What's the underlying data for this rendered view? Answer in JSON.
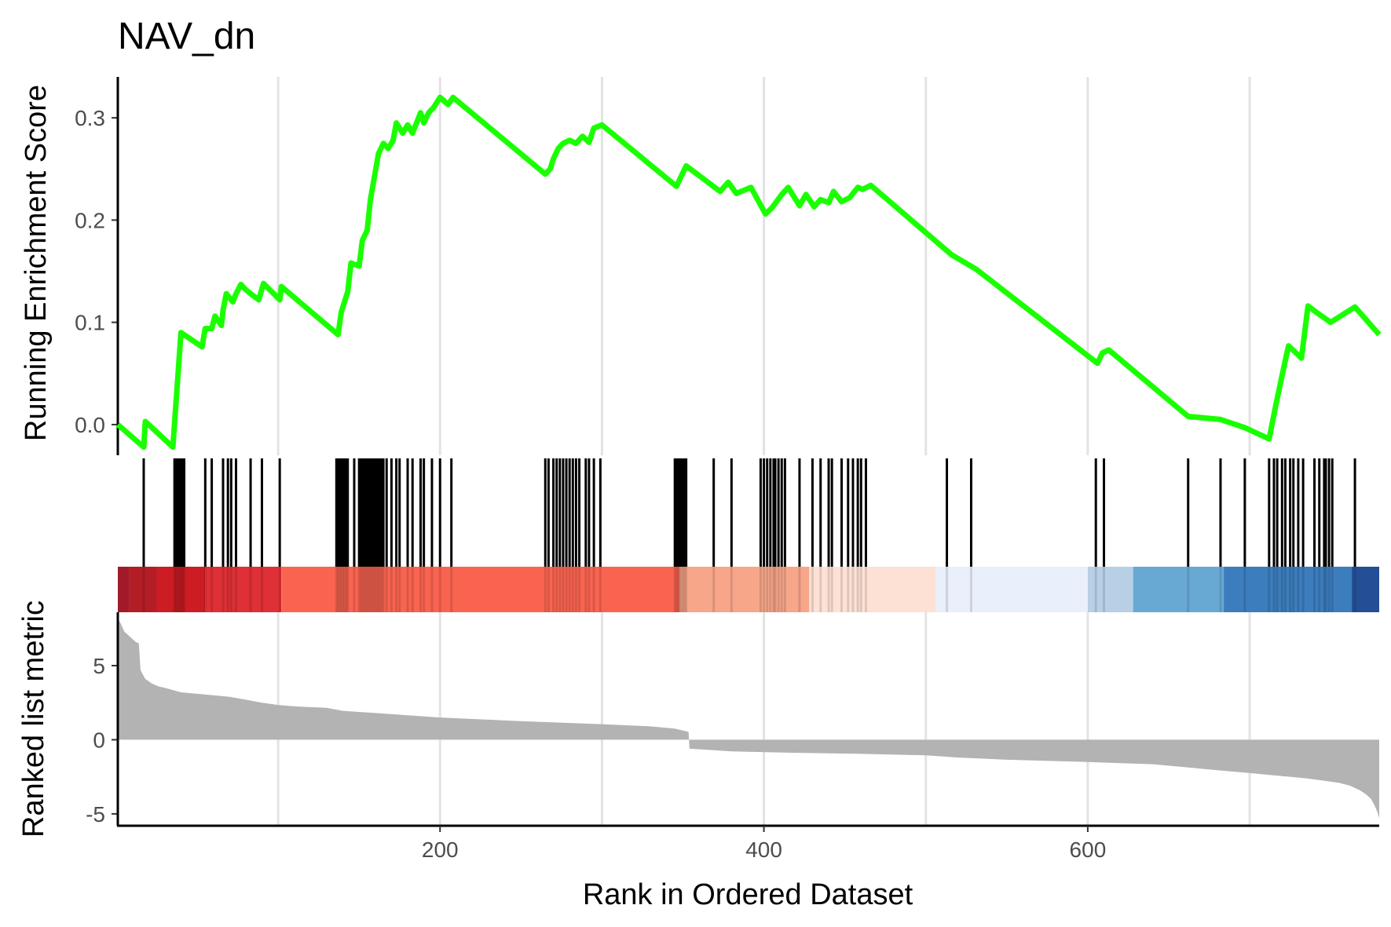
{
  "chart_data": {
    "type": "line",
    "title": "NAV_dn",
    "xlabel": "Rank in Ordered Dataset",
    "xlim": [
      1,
      780
    ],
    "x_ticks": [
      200,
      400,
      600
    ],
    "grid": "vertical major gridlines",
    "panels": [
      {
        "name": "running-enrichment",
        "ylabel": "Running Enrichment Score",
        "ylim": [
          -0.03,
          0.34
        ],
        "y_ticks": [
          0.0,
          0.1,
          0.2,
          0.3
        ],
        "y_tick_labels": [
          "0.0",
          "0.1",
          "0.2",
          "0.3"
        ],
        "line_color": "#1aff00",
        "series": [
          {
            "x": [
              1,
              17,
              18,
              35,
              40,
              53,
              55,
              59,
              61,
              65,
              66,
              68,
              72,
              74,
              77,
              80,
              83,
              88,
              91,
              101,
              102,
              137,
              139,
              143,
              145,
              150,
              152,
              155,
              157,
              162,
              165,
              168,
              171,
              173,
              177,
              180,
              183,
              188,
              190,
              193,
              196,
              200,
              205,
              208,
              265,
              268,
              270,
              273,
              276,
              280,
              284,
              288,
              292,
              295,
              300,
              346,
              352,
              373,
              378,
              383,
              392,
              401,
              405,
              411,
              415,
              422,
              426,
              431,
              435,
              440,
              443,
              448,
              453,
              458,
              461,
              466,
              516,
              531,
              606,
              609,
              613,
              662,
              682,
              697,
              712,
              716,
              720,
              724,
              732,
              736,
              741,
              750,
              765,
              780
            ],
            "y": [
              0.0,
              -0.022,
              0.003,
              -0.022,
              0.09,
              0.076,
              0.094,
              0.094,
              0.106,
              0.097,
              0.112,
              0.128,
              0.12,
              0.128,
              0.137,
              0.132,
              0.128,
              0.122,
              0.138,
              0.122,
              0.135,
              0.088,
              0.11,
              0.13,
              0.158,
              0.155,
              0.18,
              0.19,
              0.22,
              0.265,
              0.275,
              0.27,
              0.278,
              0.295,
              0.285,
              0.293,
              0.285,
              0.305,
              0.295,
              0.305,
              0.31,
              0.32,
              0.313,
              0.32,
              0.245,
              0.25,
              0.26,
              0.27,
              0.275,
              0.278,
              0.275,
              0.282,
              0.276,
              0.29,
              0.293,
              0.233,
              0.253,
              0.228,
              0.237,
              0.226,
              0.232,
              0.206,
              0.212,
              0.225,
              0.232,
              0.214,
              0.225,
              0.213,
              0.22,
              0.217,
              0.228,
              0.218,
              0.222,
              0.232,
              0.23,
              0.234,
              0.166,
              0.152,
              0.06,
              0.07,
              0.073,
              0.008,
              0.005,
              -0.003,
              -0.014,
              0.018,
              0.048,
              0.077,
              0.065,
              0.116,
              0.11,
              0.1,
              0.115,
              0.088
            ]
          }
        ]
      },
      {
        "name": "hit-positions",
        "type": "rug",
        "hits": [
          17,
          36,
          37,
          38,
          39,
          40,
          41,
          42,
          55,
          59,
          66,
          69,
          71,
          74,
          83,
          90,
          101,
          136,
          137,
          138,
          139,
          140,
          141,
          142,
          143,
          147,
          150,
          151,
          152,
          153,
          154,
          155,
          156,
          157,
          158,
          159,
          160,
          161,
          162,
          163,
          164,
          165,
          167,
          170,
          173,
          175,
          180,
          183,
          188,
          190,
          195,
          200,
          207,
          265,
          267,
          270,
          272,
          274,
          276,
          278,
          280,
          282,
          284,
          286,
          290,
          292,
          295,
          299,
          345,
          346,
          347,
          348,
          349,
          350,
          351,
          352,
          369,
          380,
          398,
          400,
          402,
          404,
          406,
          407,
          409,
          411,
          413,
          422,
          430,
          435,
          440,
          442,
          448,
          452,
          455,
          458,
          460,
          463,
          513,
          528,
          605,
          610,
          662,
          682,
          697,
          712,
          715,
          717,
          720,
          722,
          725,
          727,
          730,
          733,
          740,
          743,
          746,
          747,
          749,
          751,
          765
        ]
      },
      {
        "name": "ranked-metric-colorbar",
        "type": "color-band",
        "segments": [
          {
            "from": 1,
            "to": 8,
            "color": "#a01a2a"
          },
          {
            "from": 8,
            "to": 25,
            "color": "#b21d26"
          },
          {
            "from": 25,
            "to": 55,
            "color": "#cc1c24"
          },
          {
            "from": 55,
            "to": 102,
            "color": "#de3036"
          },
          {
            "from": 102,
            "to": 348,
            "color": "#f96450"
          },
          {
            "from": 348,
            "to": 428,
            "color": "#f7a68a"
          },
          {
            "from": 428,
            "to": 506,
            "color": "#fde1d5"
          },
          {
            "from": 506,
            "to": 600,
            "color": "#eaeffc"
          },
          {
            "from": 600,
            "to": 628,
            "color": "#b8d0e6"
          },
          {
            "from": 628,
            "to": 684,
            "color": "#68a9d4"
          },
          {
            "from": 684,
            "to": 763,
            "color": "#3c7dbd"
          },
          {
            "from": 763,
            "to": 780,
            "color": "#244f96"
          }
        ]
      },
      {
        "name": "ranked-list-metric",
        "type": "area",
        "ylabel": "Ranked list metric",
        "ylim": [
          -5.8,
          8.6
        ],
        "y_ticks": [
          5,
          0,
          -5
        ],
        "y_tick_labels": [
          "5",
          "0",
          "-5"
        ],
        "fill_color": "#b3b3b3",
        "series": [
          {
            "x": [
              1,
              3,
              5,
              9,
              12,
              14,
              15,
              18,
              22,
              26,
              30,
              40,
              50,
              70,
              80,
              90,
              100,
              110,
              130,
              140,
              160,
              200,
              250,
              300,
              330,
              345,
              353,
              353.5,
              354,
              380,
              420,
              460,
              500,
              520,
              550,
              600,
              640,
              660,
              680,
              700,
              720,
              735,
              745,
              755,
              762,
              768,
              772,
              775,
              777,
              779,
              780
            ],
            "y": [
              8.2,
              7.8,
              7.3,
              6.9,
              6.6,
              6.5,
              4.7,
              4.1,
              3.8,
              3.6,
              3.5,
              3.2,
              3.1,
              2.9,
              2.7,
              2.5,
              2.35,
              2.25,
              2.15,
              1.95,
              1.8,
              1.5,
              1.25,
              1.05,
              0.9,
              0.75,
              0.55,
              0.5,
              -0.6,
              -0.78,
              -0.88,
              -0.95,
              -1.05,
              -1.2,
              -1.35,
              -1.5,
              -1.65,
              -1.85,
              -2.05,
              -2.25,
              -2.45,
              -2.6,
              -2.75,
              -2.9,
              -3.1,
              -3.4,
              -3.7,
              -4.0,
              -4.4,
              -4.9,
              -5.3
            ]
          }
        ]
      }
    ]
  }
}
